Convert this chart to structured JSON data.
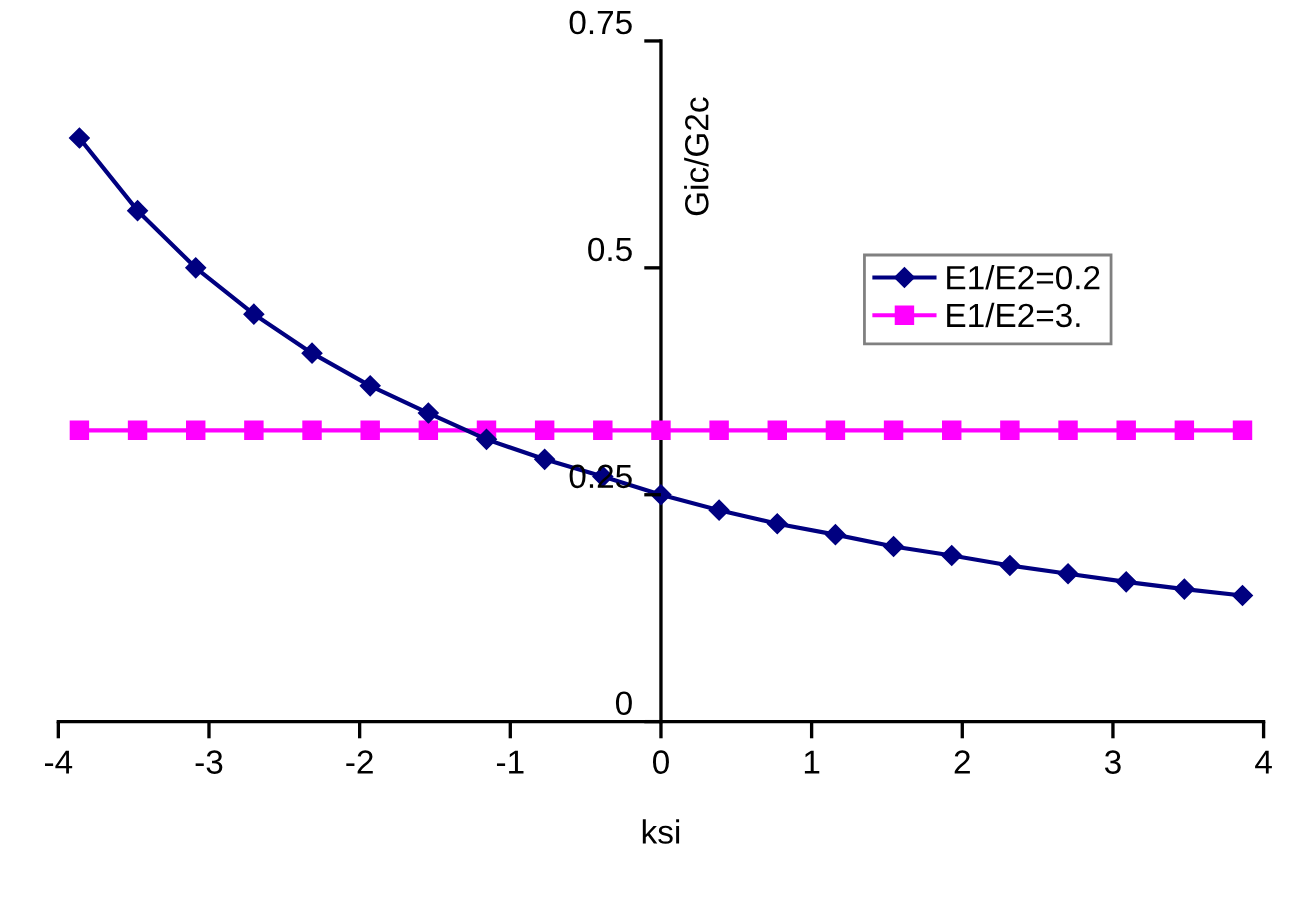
{
  "chart_data": {
    "type": "line",
    "xlabel": "ksi",
    "ylabel": "Gic/G2c",
    "x": [
      -3.86,
      -3.474,
      -3.088,
      -2.702,
      -2.316,
      -1.93,
      -1.544,
      -1.158,
      -0.772,
      -0.386,
      0,
      0.386,
      0.772,
      1.158,
      1.544,
      1.93,
      2.316,
      2.702,
      3.088,
      3.474,
      3.86
    ],
    "series": [
      {
        "name": "E1/E2=0.2",
        "color": "#000080",
        "marker": "diamond",
        "values": [
          0.643,
          0.563,
          0.5,
          0.449,
          0.406,
          0.37,
          0.34,
          0.311,
          0.289,
          0.27,
          0.25,
          0.233,
          0.218,
          0.206,
          0.193,
          0.183,
          0.172,
          0.163,
          0.154,
          0.146,
          0.139
        ]
      },
      {
        "name": "E1/E2=3.",
        "color": "#ff00ff",
        "marker": "square",
        "values": [
          0.321,
          0.321,
          0.321,
          0.321,
          0.321,
          0.321,
          0.321,
          0.321,
          0.321,
          0.321,
          0.321,
          0.321,
          0.321,
          0.321,
          0.321,
          0.321,
          0.321,
          0.321,
          0.321,
          0.321,
          0.321
        ]
      }
    ],
    "xlim": [
      -4,
      4
    ],
    "ylim": [
      0,
      0.75
    ],
    "xticks": [
      -4,
      -3,
      -2,
      -1,
      0,
      1,
      2,
      3,
      4
    ],
    "yticks": [
      0,
      0.25,
      0.5,
      0.75
    ],
    "grid": false,
    "legend": "right",
    "line_style": "solid"
  }
}
